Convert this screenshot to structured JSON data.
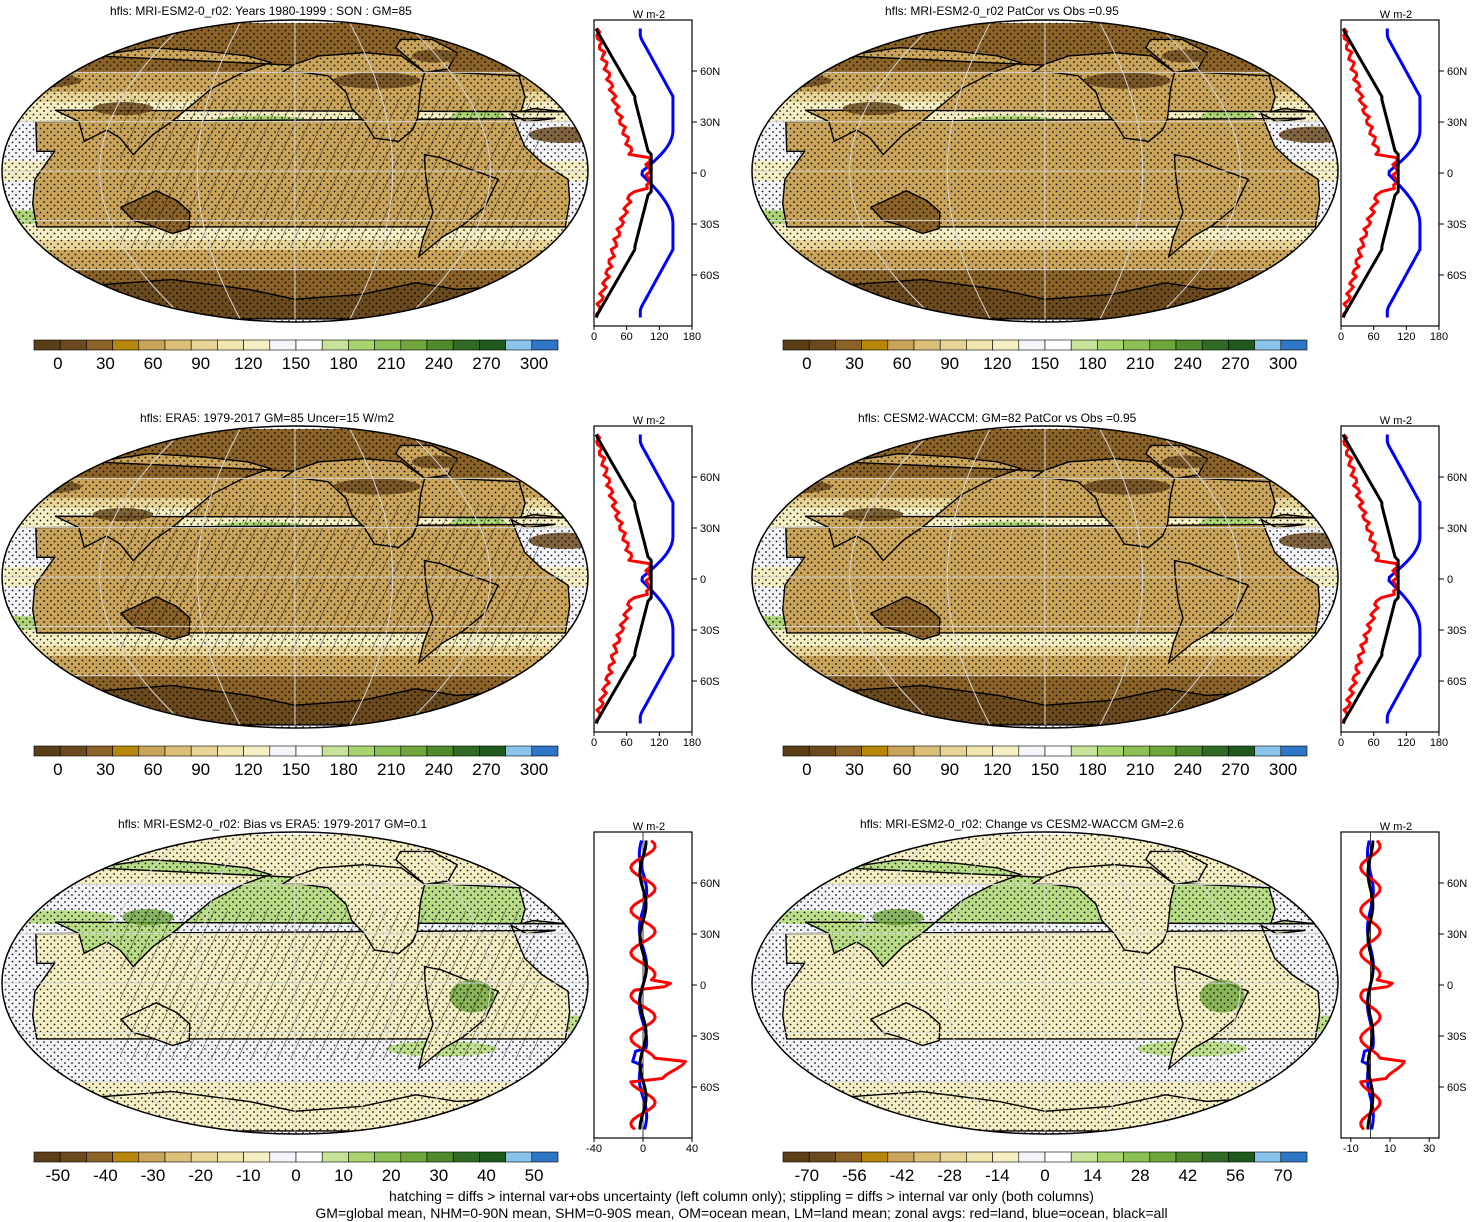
{
  "panels": [
    {
      "title": "hfls: MRI-ESM2-0_r02: Years 1980-1999 : SON : GM=85",
      "kind": "abs",
      "hatch": true
    },
    {
      "title": "hfls: MRI-ESM2-0_r02 PatCor vs Obs =0.95",
      "kind": "abs",
      "hatch": false
    },
    {
      "title": "hfls: ERA5: 1979-2017 GM=85 Uncer=15 W/m2",
      "kind": "abs",
      "hatch": true
    },
    {
      "title": "hfls: CESM2-WACCM: GM=82 PatCor vs Obs =0.95",
      "kind": "abs",
      "hatch": false
    },
    {
      "title": "hfls: MRI-ESM2-0_r02: Bias vs ERA5: 1979-2017  GM=0.1",
      "kind": "diff",
      "hatch": true
    },
    {
      "title": "hfls: MRI-ESM2-0_r02: Change vs CESM2-WACCM GM=2.6",
      "kind": "diff2",
      "hatch": false
    }
  ],
  "colorbars": {
    "abs": [
      "0",
      "30",
      "60",
      "90",
      "120",
      "150",
      "180",
      "210",
      "240",
      "270",
      "300"
    ],
    "diff": [
      "-50",
      "-40",
      "-30",
      "-20",
      "-10",
      "0",
      "10",
      "20",
      "30",
      "40",
      "50"
    ],
    "diff2": [
      "-70",
      "-56",
      "-42",
      "-28",
      "-14",
      "0",
      "14",
      "28",
      "42",
      "56",
      "70"
    ]
  },
  "colors": {
    "brown_dark": "#6b4a1e",
    "brown": "#8b6227",
    "tan": "#c9a45a",
    "sand": "#e8d597",
    "cream": "#f6efc4",
    "white": "#f4f5fb",
    "green_light": "#a9d36f",
    "green": "#6ea63b",
    "green_dark": "#2f6b24",
    "blue_light": "#89c3ec",
    "blue": "#2f76c6",
    "land_curve": "#ff0000",
    "ocean_curve": "#0000ff",
    "all_curve": "#000000"
  },
  "zonal": {
    "unit": "W m-2",
    "lat_ticks": [
      "60N",
      "30N",
      "0",
      "30S",
      "60S"
    ],
    "x_abs": [
      "0",
      "60",
      "120",
      "180"
    ],
    "x_diff": [
      "-40",
      "0",
      "40"
    ],
    "x_diff2": [
      "-10",
      "10",
      "30"
    ]
  },
  "footer": {
    "line1": "hatching = diffs > internal var+obs uncertainty (left column only); stippling = diffs > internal var only (both columns)",
    "line2": "GM=global mean, NHM=0-90N mean, SHM=0-90S mean, OM=ocean mean, LM=land mean; zonal avgs: red=land, blue=ocean, black=all"
  }
}
